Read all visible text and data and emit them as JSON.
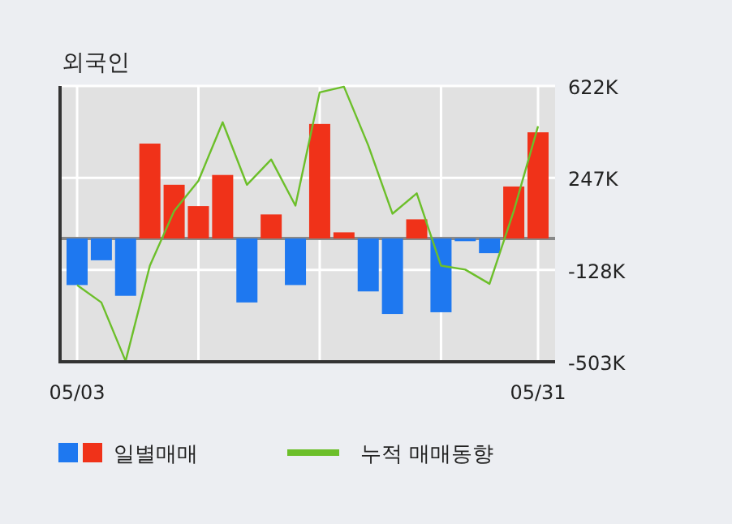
{
  "chart_data": {
    "type": "bar",
    "title": "외국인",
    "categories": [
      "05/03",
      null,
      null,
      null,
      null,
      null,
      null,
      null,
      null,
      null,
      null,
      null,
      null,
      null,
      null,
      null,
      null,
      null,
      null,
      "05/31"
    ],
    "series": [
      {
        "name": "일별매매",
        "colors": [
          "#1e78f0",
          "#1e78f0",
          "#1e78f0",
          "#f03219",
          "#f03219",
          "#f03219",
          "#f03219",
          "#1e78f0",
          "#f03219",
          "#1e78f0",
          "#f03219",
          "#f03219",
          "#1e78f0",
          "#1e78f0",
          "#f03219",
          "#1e78f0",
          "#1e78f0",
          "#1e78f0",
          "#f03219",
          "#f03219"
        ],
        "values": [
          -190000,
          -89000,
          -234000,
          387000,
          219000,
          132000,
          259000,
          -261000,
          98000,
          -190000,
          467000,
          25000,
          -216000,
          -308000,
          78000,
          -301000,
          -11000,
          -60000,
          212000,
          433000
        ]
      },
      {
        "name": "누적 매매동향",
        "type": "line",
        "color": "#6cbf2a",
        "values": [
          -190000,
          -261000,
          -500000,
          -111000,
          112000,
          235000,
          474000,
          219000,
          322000,
          134000,
          596000,
          619000,
          380000,
          101000,
          184000,
          -111000,
          -127000,
          -185000,
          112000,
          458000
        ]
      }
    ],
    "ylim": [
      -503000,
      622000
    ],
    "yticks": [
      {
        "value": 622000,
        "label": "622K"
      },
      {
        "value": 247000,
        "label": "247K"
      },
      {
        "value": -128000,
        "label": "-128K"
      },
      {
        "value": -503000,
        "label": "-503K"
      }
    ],
    "grid": true,
    "legend": "bottom"
  }
}
